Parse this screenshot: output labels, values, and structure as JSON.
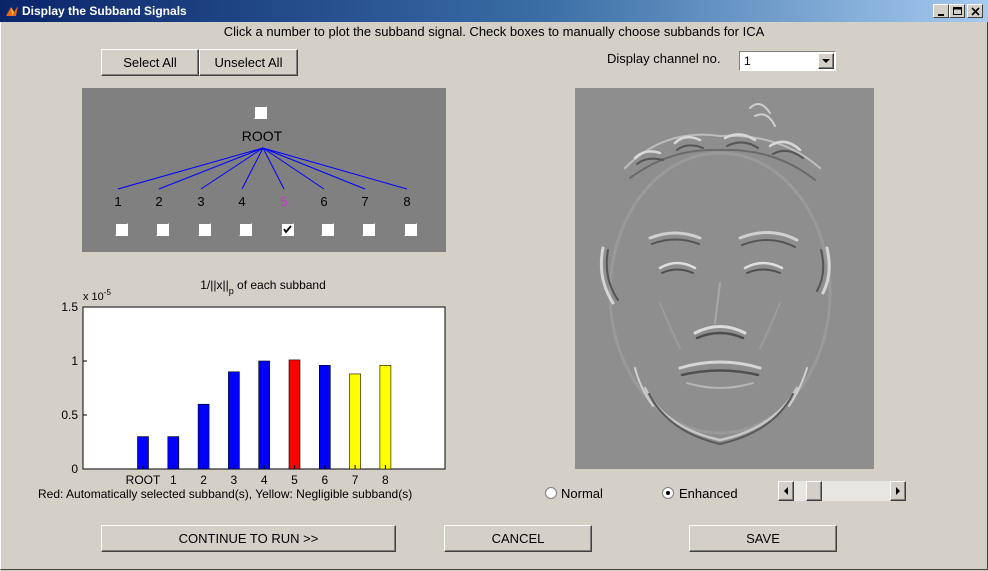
{
  "window": {
    "title": "Display the Subband Signals",
    "controls": [
      "minimize-icon",
      "maximize-icon",
      "close-icon"
    ]
  },
  "instruction": "Click a number to plot the subband signal. Check boxes to manually choose subbands for ICA",
  "toolbar": {
    "select_all_label": "Select All",
    "unselect_all_label": "Unselect All"
  },
  "tree": {
    "root_label": "ROOT",
    "root_checked": false,
    "nodes": [
      {
        "label": "1",
        "checked": false,
        "highlighted": false
      },
      {
        "label": "2",
        "checked": false,
        "highlighted": false
      },
      {
        "label": "3",
        "checked": false,
        "highlighted": false
      },
      {
        "label": "4",
        "checked": false,
        "highlighted": false
      },
      {
        "label": "5",
        "checked": true,
        "highlighted": true
      },
      {
        "label": "6",
        "checked": false,
        "highlighted": false
      },
      {
        "label": "7",
        "checked": false,
        "highlighted": false
      },
      {
        "label": "8",
        "checked": false,
        "highlighted": false
      }
    ],
    "highlight_color": "#cc33cc",
    "branch_color": "#0000ff",
    "panel_color": "#808080"
  },
  "chart_data": {
    "type": "bar",
    "title_main": "1/||x||",
    "title_sub": "p",
    "title_tail": " of each subband",
    "scale_base": "x 10",
    "scale_exp": "-5",
    "categories": [
      "ROOT",
      "1",
      "2",
      "3",
      "4",
      "5",
      "6",
      "7",
      "8"
    ],
    "values": [
      0.3,
      0.3,
      0.6,
      0.9,
      1.0,
      1.01,
      0.96,
      0.88,
      0.96
    ],
    "colors": [
      "#0000ff",
      "#0000ff",
      "#0000ff",
      "#0000ff",
      "#0000ff",
      "#ff0000",
      "#0000ff",
      "#ffff00",
      "#ffff00"
    ],
    "ylim": [
      0,
      1.5
    ],
    "yticks": [
      "0",
      "0.5",
      "1",
      "1.5"
    ],
    "caption": "Red: Automatically selected subband(s), Yellow: Negligible subband(s)"
  },
  "display": {
    "channel_label": "Display channel no.",
    "channel_value": "1"
  },
  "view_mode": {
    "normal_label": "Normal",
    "enhanced_label": "Enhanced",
    "selected": "Enhanced",
    "slider_value": 0.05
  },
  "actions": {
    "continue_label": "CONTINUE TO RUN >>",
    "cancel_label": "CANCEL",
    "save_label": "SAVE"
  },
  "colors": {
    "face_image_bg": "#8e8e8e"
  }
}
